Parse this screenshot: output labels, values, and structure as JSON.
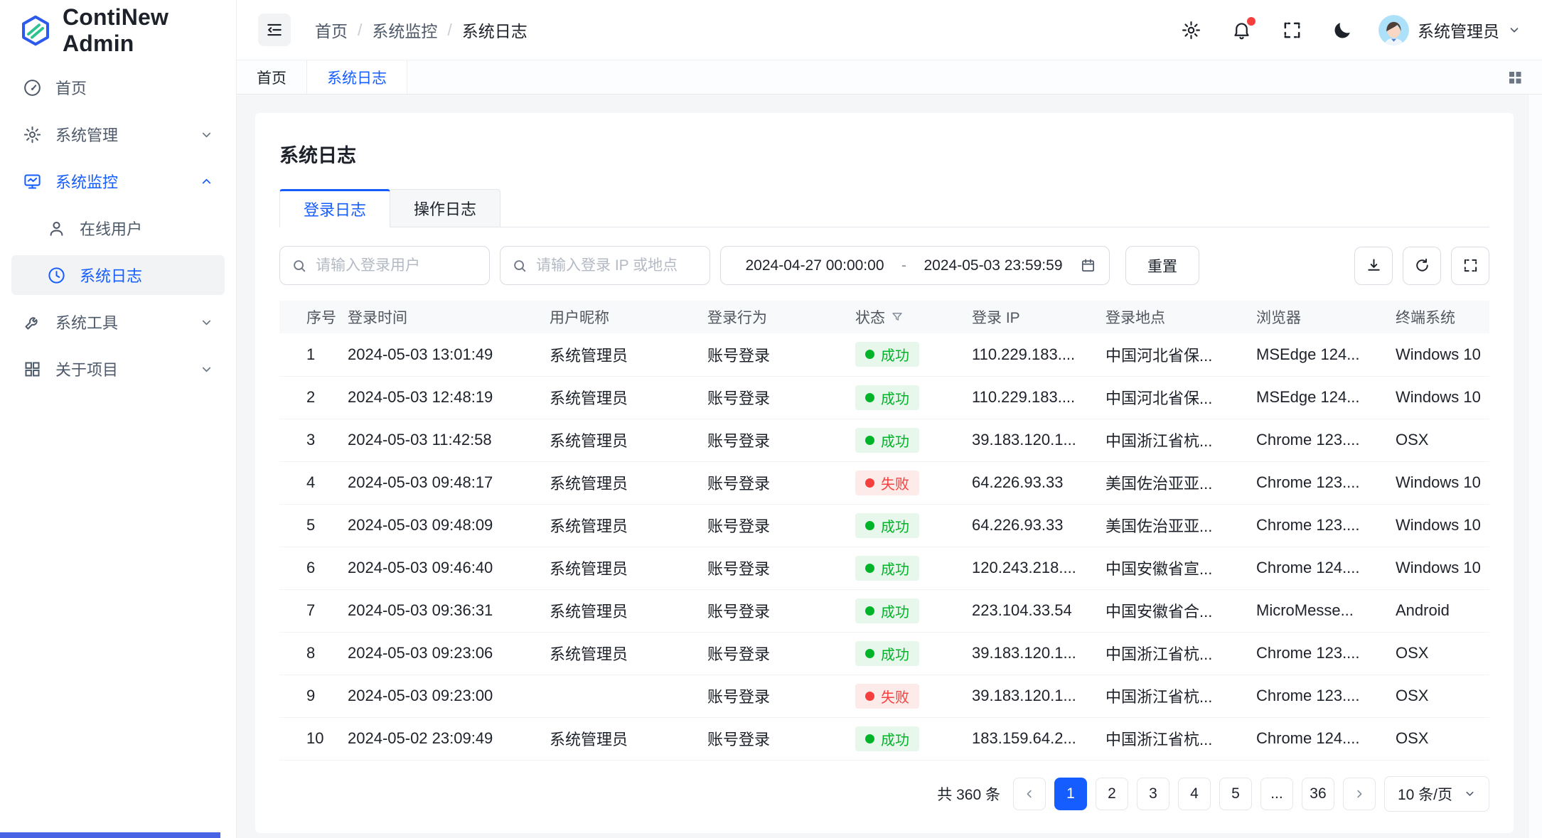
{
  "colors": {
    "accent": "#165dff",
    "success": "#00b42a",
    "success_bg": "#e8f7eb",
    "danger": "#f53f3f",
    "danger_bg": "#fdebe9",
    "bottom_bar": "#4664e4"
  },
  "sidebar": {
    "logo_text": "ContiNew Admin",
    "items": [
      {
        "label": "首页",
        "icon": "dashboard-icon"
      },
      {
        "label": "系统管理",
        "icon": "gear-icon",
        "chevron": "down"
      },
      {
        "label": "系统监控",
        "icon": "monitor-icon",
        "chevron": "up",
        "active": true
      },
      {
        "label": "在线用户",
        "icon": "user-icon",
        "sub": true
      },
      {
        "label": "系统日志",
        "icon": "clock-icon",
        "sub": true,
        "selected": true
      },
      {
        "label": "系统工具",
        "icon": "wrench-icon",
        "chevron": "down"
      },
      {
        "label": "关于项目",
        "icon": "apps-icon",
        "chevron": "down"
      }
    ]
  },
  "header": {
    "breadcrumb": [
      "首页",
      "系统监控",
      "系统日志"
    ],
    "separator": "/",
    "user_name": "系统管理员"
  },
  "tabbar": {
    "tabs": [
      {
        "label": "首页"
      },
      {
        "label": "系统日志",
        "active": true
      }
    ]
  },
  "page": {
    "title": "系统日志",
    "subtabs": [
      {
        "label": "登录日志",
        "active": true
      },
      {
        "label": "操作日志"
      }
    ]
  },
  "filters": {
    "user_placeholder": "请输入登录用户",
    "ip_placeholder": "请输入登录 IP 或地点",
    "date_start": "2024-04-27 00:00:00",
    "date_separator": "-",
    "date_end": "2024-05-03 23:59:59",
    "reset_label": "重置"
  },
  "table": {
    "headers": [
      "序号",
      "登录时间",
      "用户昵称",
      "登录行为",
      "状态",
      "登录 IP",
      "登录地点",
      "浏览器",
      "终端系统"
    ],
    "rows": [
      {
        "index": "1",
        "time": "2024-05-03 13:01:49",
        "nickname": "系统管理员",
        "behavior": "账号登录",
        "status": "成功",
        "status_type": "success",
        "ip": "110.229.183....",
        "location": "中国河北省保...",
        "browser": "MSEdge 124...",
        "os": "Windows 10"
      },
      {
        "index": "2",
        "time": "2024-05-03 12:48:19",
        "nickname": "系统管理员",
        "behavior": "账号登录",
        "status": "成功",
        "status_type": "success",
        "ip": "110.229.183....",
        "location": "中国河北省保...",
        "browser": "MSEdge 124...",
        "os": "Windows 10"
      },
      {
        "index": "3",
        "time": "2024-05-03 11:42:58",
        "nickname": "系统管理员",
        "behavior": "账号登录",
        "status": "成功",
        "status_type": "success",
        "ip": "39.183.120.1...",
        "location": "中国浙江省杭...",
        "browser": "Chrome 123....",
        "os": "OSX"
      },
      {
        "index": "4",
        "time": "2024-05-03 09:48:17",
        "nickname": "系统管理员",
        "behavior": "账号登录",
        "status": "失败",
        "status_type": "fail",
        "ip": "64.226.93.33",
        "location": "美国佐治亚亚...",
        "browser": "Chrome 123....",
        "os": "Windows 10"
      },
      {
        "index": "5",
        "time": "2024-05-03 09:48:09",
        "nickname": "系统管理员",
        "behavior": "账号登录",
        "status": "成功",
        "status_type": "success",
        "ip": "64.226.93.33",
        "location": "美国佐治亚亚...",
        "browser": "Chrome 123....",
        "os": "Windows 10"
      },
      {
        "index": "6",
        "time": "2024-05-03 09:46:40",
        "nickname": "系统管理员",
        "behavior": "账号登录",
        "status": "成功",
        "status_type": "success",
        "ip": "120.243.218....",
        "location": "中国安徽省宣...",
        "browser": "Chrome 124....",
        "os": "Windows 10"
      },
      {
        "index": "7",
        "time": "2024-05-03 09:36:31",
        "nickname": "系统管理员",
        "behavior": "账号登录",
        "status": "成功",
        "status_type": "success",
        "ip": "223.104.33.54",
        "location": "中国安徽省合...",
        "browser": "MicroMesse...",
        "os": "Android"
      },
      {
        "index": "8",
        "time": "2024-05-03 09:23:06",
        "nickname": "系统管理员",
        "behavior": "账号登录",
        "status": "成功",
        "status_type": "success",
        "ip": "39.183.120.1...",
        "location": "中国浙江省杭...",
        "browser": "Chrome 123....",
        "os": "OSX"
      },
      {
        "index": "9",
        "time": "2024-05-03 09:23:00",
        "nickname": "",
        "behavior": "账号登录",
        "status": "失败",
        "status_type": "fail",
        "ip": "39.183.120.1...",
        "location": "中国浙江省杭...",
        "browser": "Chrome 123....",
        "os": "OSX"
      },
      {
        "index": "10",
        "time": "2024-05-02 23:09:49",
        "nickname": "系统管理员",
        "behavior": "账号登录",
        "status": "成功",
        "status_type": "success",
        "ip": "183.159.64.2...",
        "location": "中国浙江省杭...",
        "browser": "Chrome 124....",
        "os": "OSX"
      }
    ]
  },
  "pagination": {
    "total_label": "共 360 条",
    "pages": [
      "1",
      "2",
      "3",
      "4",
      "5"
    ],
    "more_label": "...",
    "last_page": "36",
    "active_page": "1",
    "page_size": "10 条/页"
  }
}
